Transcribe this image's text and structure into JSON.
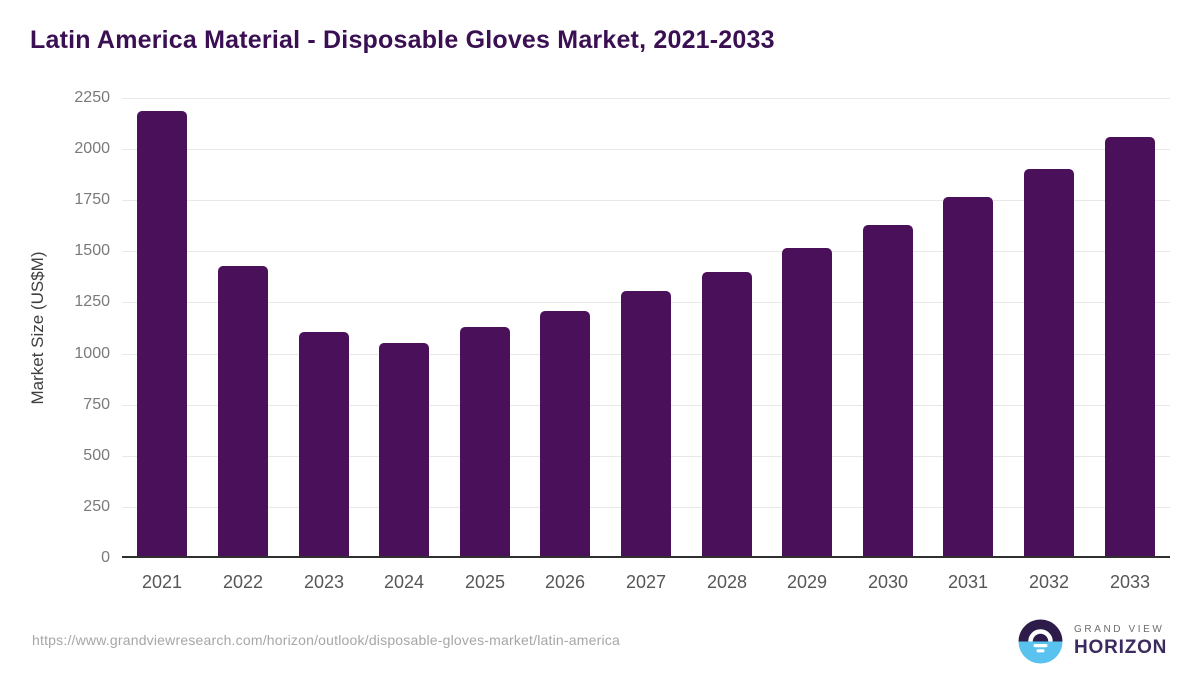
{
  "title": "Latin America Material - Disposable Gloves Market, 2021-2033",
  "chart_data": {
    "type": "bar",
    "title": "Latin America Material - Disposable Gloves Market, 2021-2033",
    "categories": [
      "2021",
      "2022",
      "2023",
      "2024",
      "2025",
      "2026",
      "2027",
      "2028",
      "2029",
      "2030",
      "2031",
      "2032",
      "2033"
    ],
    "values": [
      2185,
      1430,
      1105,
      1050,
      1130,
      1210,
      1305,
      1400,
      1515,
      1630,
      1765,
      1905,
      2060
    ],
    "xlabel": "",
    "ylabel": "Market Size (US$M)",
    "ylim": [
      0,
      2250
    ],
    "ytick_step": 250,
    "yticks": [
      0,
      250,
      500,
      750,
      1000,
      1250,
      1500,
      1750,
      2000,
      2250
    ],
    "grid": true,
    "legend": "none",
    "bar_color": "#4a1059"
  },
  "colors": {
    "title": "#3a1053",
    "bar": "#4a1059",
    "gridline": "#e8e8e8",
    "zero_axis": "#2f2f2f",
    "y_tick_label": "#7a7a7a",
    "x_tick_label": "#565656",
    "source_url": "#a6a6a6",
    "logo_dark": "#2d1c49",
    "logo_blue": "#5ac2ee",
    "logo_horizon_text": "#3b2b5e",
    "logo_grandview_text": "#6d6d6d"
  },
  "footer": {
    "source_url": "https://www.grandviewresearch.com/horizon/outlook/disposable-gloves-market/latin-america",
    "logo_top": "GRAND VIEW",
    "logo_bottom": "HORIZON"
  }
}
